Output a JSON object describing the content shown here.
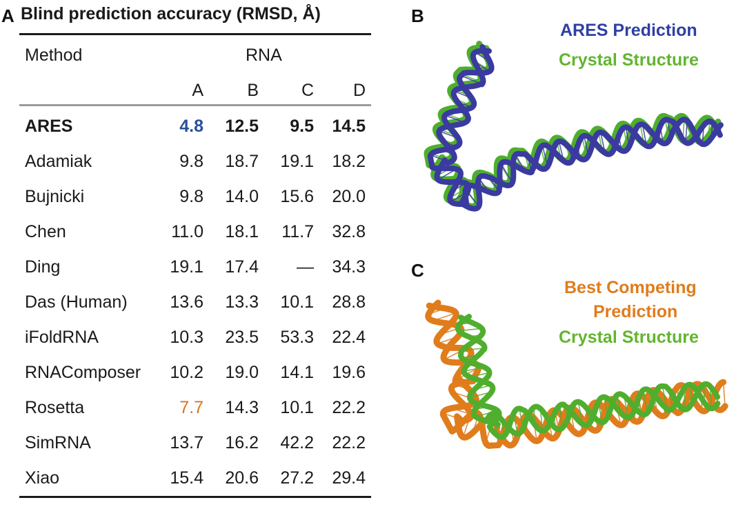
{
  "panel_a": {
    "letter": "A",
    "title": "Blind prediction accuracy (RMSD, Å)",
    "header_method": "Method",
    "header_group": "RNA",
    "columns": [
      "A",
      "B",
      "C",
      "D"
    ],
    "rows": [
      {
        "method": "ARES",
        "values": [
          "4.8",
          "12.5",
          "9.5",
          "14.5"
        ],
        "bold": true
      },
      {
        "method": "Adamiak",
        "values": [
          "9.8",
          "18.7",
          "19.1",
          "18.2"
        ]
      },
      {
        "method": "Bujnicki",
        "values": [
          "9.8",
          "14.0",
          "15.6",
          "20.0"
        ]
      },
      {
        "method": "Chen",
        "values": [
          "11.0",
          "18.1",
          "11.7",
          "32.8"
        ]
      },
      {
        "method": "Ding",
        "values": [
          "19.1",
          "17.4",
          "—",
          "34.3"
        ]
      },
      {
        "method": "Das (Human)",
        "values": [
          "13.6",
          "13.3",
          "10.1",
          "28.8"
        ]
      },
      {
        "method": "iFoldRNA",
        "values": [
          "10.3",
          "23.5",
          "53.3",
          "22.4"
        ]
      },
      {
        "method": "RNAComposer",
        "values": [
          "10.2",
          "19.0",
          "14.1",
          "19.6"
        ]
      },
      {
        "method": "Rosetta",
        "values": [
          "7.7",
          "14.3",
          "10.1",
          "22.2"
        ]
      },
      {
        "method": "SimRNA",
        "values": [
          "13.7",
          "16.2",
          "42.2",
          "22.2"
        ]
      },
      {
        "method": "Xiao",
        "values": [
          "15.4",
          "20.6",
          "27.2",
          "29.4"
        ]
      }
    ],
    "highlight_colors": {
      "ares": "#2a4f9c",
      "rosetta": "#d9731b"
    }
  },
  "panel_b": {
    "letter": "B",
    "legend": [
      "ARES Prediction",
      "Crystal Structure"
    ],
    "colors": {
      "prediction": "#3a3aa0",
      "crystal": "#4fae2e"
    }
  },
  "panel_c": {
    "letter": "C",
    "legend": [
      "Best Competing",
      "Prediction",
      "Crystal Structure"
    ],
    "colors": {
      "prediction": "#e07c1c",
      "crystal": "#4fae2e"
    }
  }
}
